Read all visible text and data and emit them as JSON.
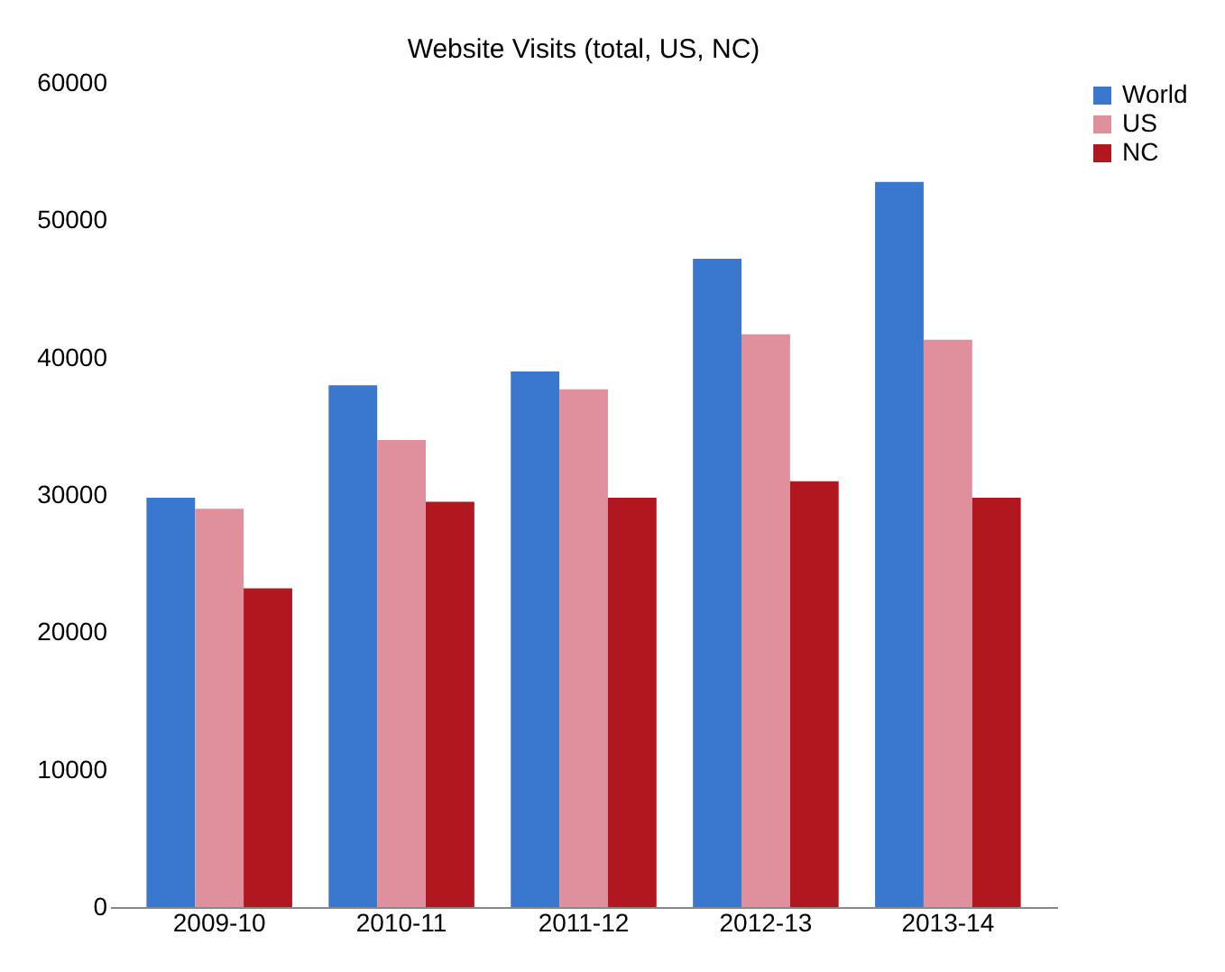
{
  "chart_data": {
    "type": "bar",
    "title": "Website Visits (total, US, NC)",
    "categories": [
      "2009-10",
      "2010-11",
      "2011-12",
      "2012-13",
      "2013-14"
    ],
    "series": [
      {
        "name": "World",
        "color": "#3a78cf",
        "values": [
          29800,
          38000,
          39000,
          47200,
          52800
        ]
      },
      {
        "name": "US",
        "color": "#e0909c",
        "values": [
          29000,
          34000,
          37700,
          41700,
          41300
        ]
      },
      {
        "name": "NC",
        "color": "#b0171f",
        "values": [
          23200,
          29500,
          29800,
          31000,
          29800
        ]
      }
    ],
    "ylim": [
      0,
      60000
    ],
    "yticks": [
      0,
      10000,
      20000,
      30000,
      40000,
      50000,
      60000
    ],
    "grid": false,
    "legend": "right"
  }
}
